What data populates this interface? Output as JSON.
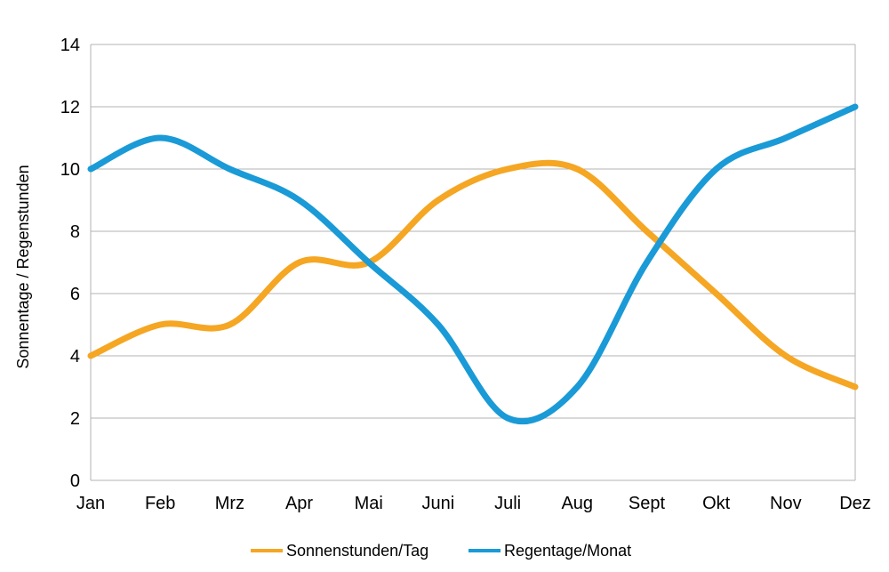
{
  "chart_data": {
    "type": "line",
    "title": "",
    "xlabel": "",
    "ylabel": "Sonnentage / Regenstunden",
    "categories": [
      "Jan",
      "Feb",
      "Mrz",
      "Apr",
      "Mai",
      "Juni",
      "Juli",
      "Aug",
      "Sept",
      "Okt",
      "Nov",
      "Dez"
    ],
    "ylim": [
      0,
      14
    ],
    "yticks": [
      0,
      2,
      4,
      6,
      8,
      10,
      12,
      14
    ],
    "grid": true,
    "smooth": true,
    "legend_position": "bottom",
    "series": [
      {
        "name": "Sonnenstunden/Tag",
        "color": "#f5a623",
        "values": [
          4,
          5,
          5,
          7,
          7,
          9,
          10,
          10,
          8,
          6,
          4,
          3
        ]
      },
      {
        "name": "Regentage/Monat",
        "color": "#1a9ad6",
        "values": [
          10,
          11,
          10,
          9,
          7,
          5,
          2,
          3,
          7,
          10,
          11,
          12
        ]
      }
    ]
  }
}
